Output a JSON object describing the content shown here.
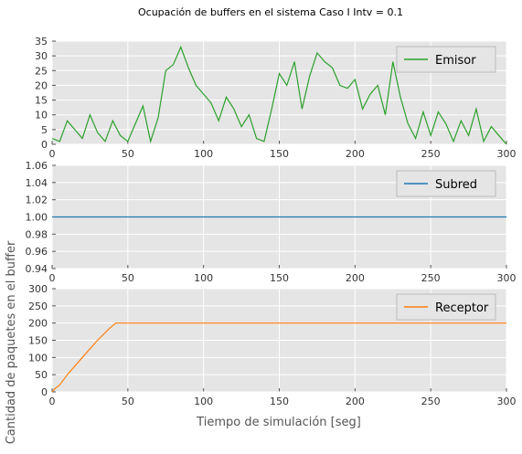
{
  "chart_data": {
    "type": "line",
    "title": "Ocupación de buffers en el sistema Caso I Intv = 0.1",
    "xlabel": "Tiempo de simulación [seg]",
    "ylabel": "Cantidad de paquetes en el buffer",
    "xlim": [
      0,
      300
    ],
    "x_ticks": [
      "0",
      "50",
      "100",
      "150",
      "200",
      "250",
      "300"
    ],
    "grid": true,
    "legend_position": "top-right",
    "panels": [
      {
        "series": {
          "name": "Emisor",
          "color": "#2ca02c",
          "x": [
            0,
            5,
            10,
            15,
            20,
            25,
            30,
            35,
            40,
            45,
            50,
            55,
            60,
            65,
            70,
            75,
            80,
            85,
            90,
            95,
            100,
            105,
            110,
            115,
            120,
            125,
            130,
            135,
            140,
            145,
            150,
            155,
            160,
            165,
            170,
            175,
            180,
            185,
            190,
            195,
            200,
            205,
            210,
            215,
            220,
            225,
            230,
            235,
            240,
            245,
            250,
            255,
            260,
            265,
            270,
            275,
            280,
            285,
            290,
            295,
            300
          ],
          "y": [
            2,
            1,
            8,
            5,
            2,
            10,
            4,
            1,
            8,
            3,
            1,
            7,
            13,
            1,
            9,
            25,
            27,
            33,
            26,
            20,
            17,
            14,
            8,
            16,
            12,
            6,
            10,
            2,
            1,
            12,
            24,
            20,
            28,
            12,
            23,
            31,
            28,
            26,
            20,
            19,
            22,
            12,
            17,
            20,
            10,
            28,
            16,
            7,
            2,
            11,
            3,
            11,
            7,
            1,
            8,
            3,
            12,
            1,
            6,
            3,
            0
          ]
        },
        "ylim": [
          0,
          35
        ],
        "y_ticks": [
          "0",
          "5",
          "10",
          "15",
          "20",
          "25",
          "30",
          "35"
        ]
      },
      {
        "series": {
          "name": "Subred",
          "color": "#1f77b4",
          "x": [
            0,
            300
          ],
          "y": [
            1.0,
            1.0
          ]
        },
        "ylim": [
          0.94,
          1.06
        ],
        "y_ticks": [
          "0.94",
          "0.96",
          "0.98",
          "1.00",
          "1.02",
          "1.04",
          "1.06"
        ]
      },
      {
        "series": {
          "name": "Receptor",
          "color": "#ff7f0e",
          "x": [
            0,
            2,
            5,
            10,
            20,
            30,
            38,
            42,
            50,
            100,
            150,
            200,
            250,
            300
          ],
          "y": [
            0,
            10,
            20,
            50,
            100,
            150,
            185,
            200,
            200,
            200,
            200,
            200,
            200,
            200
          ]
        },
        "ylim": [
          0,
          300
        ],
        "y_ticks": [
          "0",
          "50",
          "100",
          "150",
          "200",
          "250",
          "300"
        ]
      }
    ]
  }
}
